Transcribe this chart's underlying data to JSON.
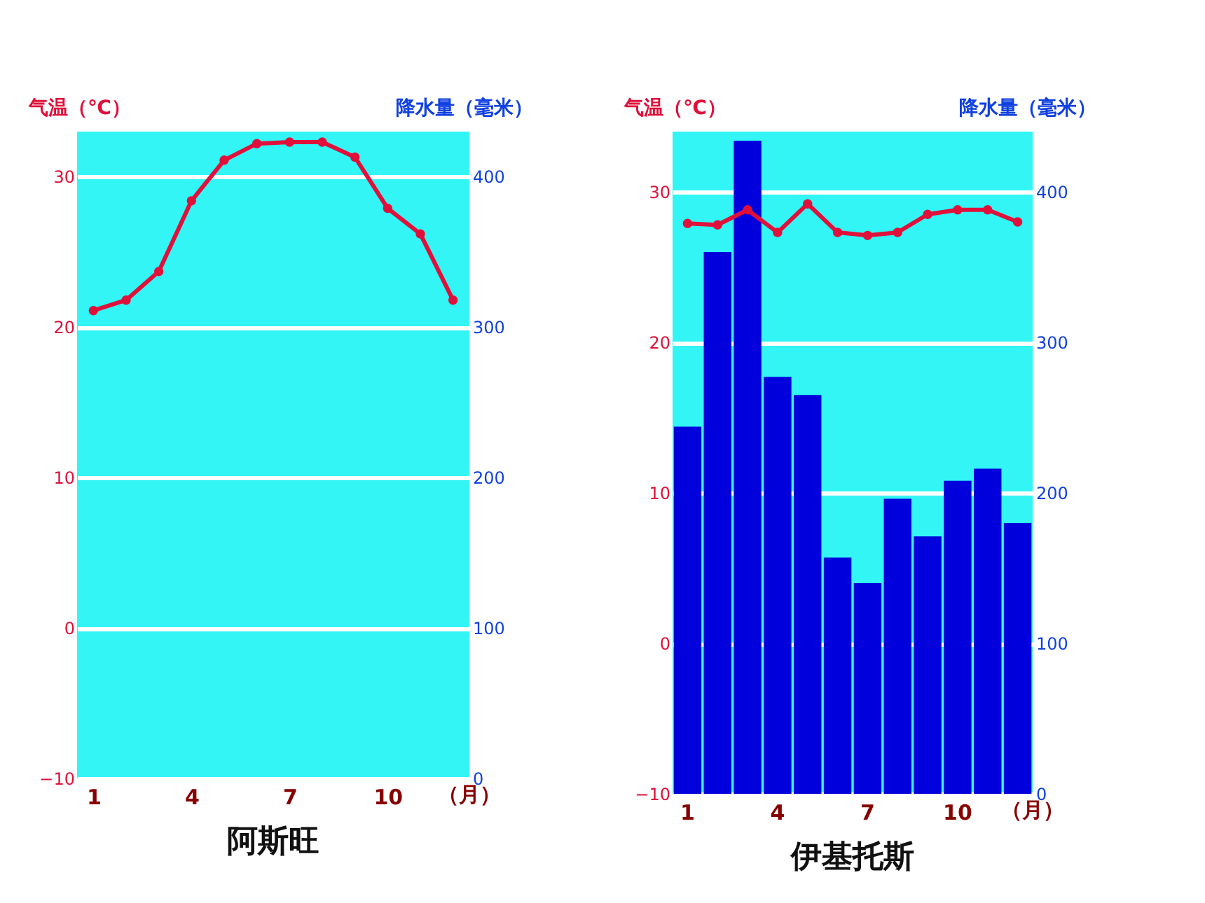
{
  "chart_data": [
    {
      "type": "line",
      "title": "阿斯旺",
      "xlabel": "（月）",
      "ylabel": "气温（℃）",
      "y2label": "降水量（毫米）",
      "categories": [
        "1",
        null,
        null,
        "4",
        null,
        null,
        "7",
        null,
        null,
        "10",
        null,
        null
      ],
      "series": [
        {
          "color": "#e0103a",
          "values": [
            21.1,
            21.8,
            23.7,
            28.4,
            31.1,
            32.2,
            32.3,
            32.3,
            31.3,
            27.9,
            26.2,
            21.8
          ]
        }
      ],
      "ylim": [
        -10,
        33
      ],
      "yticks": [
        -10,
        0,
        10,
        20,
        30
      ],
      "y2lim": [
        0,
        430
      ],
      "y2ticks": [
        0,
        100,
        200,
        300,
        400
      ],
      "grid": "y",
      "marker": "circle",
      "line_style": "solid"
    },
    {
      "type": "bar",
      "title": "伊基托斯",
      "xlabel": "（月）",
      "ylabel": "气温（℃）",
      "y2label": "降水量（毫米）",
      "categories": [
        "1",
        null,
        null,
        "4",
        null,
        null,
        "7",
        null,
        null,
        "10",
        null,
        null
      ],
      "series": [
        {
          "axis": "y2",
          "color": "#0000dd",
          "values": [
            244,
            360,
            434,
            277,
            265,
            157,
            140,
            196,
            171,
            208,
            216,
            180
          ]
        },
        {
          "type": "line",
          "color": "#e0103a",
          "values": [
            27.9,
            27.8,
            28.8,
            27.3,
            29.2,
            27.3,
            27.1,
            27.3,
            28.5,
            28.8,
            28.8,
            28.0
          ]
        }
      ],
      "ylim": [
        -10,
        34
      ],
      "yticks": [
        -10,
        0,
        10,
        20,
        30
      ],
      "y2lim": [
        0,
        440
      ],
      "y2ticks": [
        0,
        100,
        200,
        300,
        400
      ],
      "grid": "y",
      "marker": "circle",
      "line_style": "solid"
    }
  ]
}
